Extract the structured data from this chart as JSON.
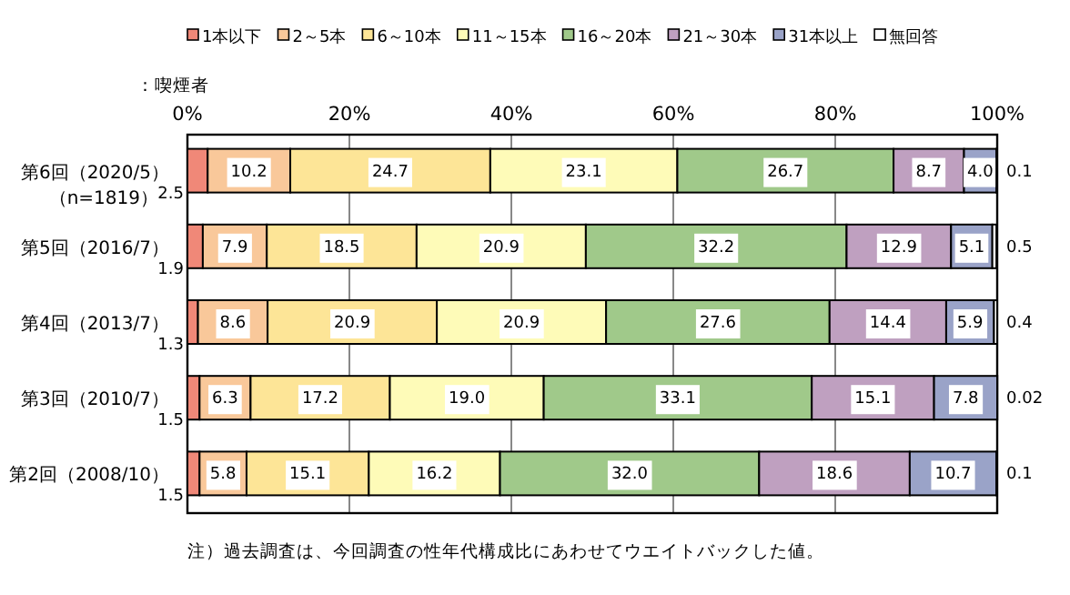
{
  "chart_data": {
    "type": "bar",
    "orientation": "horizontal",
    "stacked": true,
    "subtitle": "：喫煙者",
    "categories": [
      "第6回（2020/5）（n=1819）",
      "第5回（2016/7）",
      "第4回（2013/7）",
      "第3回（2010/7）",
      "第2回（2008/10）"
    ],
    "series": [
      {
        "name": "1本以下",
        "color": "#f08878",
        "values": [
          2.5,
          1.9,
          1.3,
          1.5,
          1.5
        ],
        "value_labels": [
          "2.5",
          "1.9",
          "1.3",
          "1.5",
          "1.5"
        ]
      },
      {
        "name": "2～5本",
        "color": "#f9c89a",
        "values": [
          10.2,
          7.9,
          8.6,
          6.3,
          5.8
        ],
        "value_labels": [
          "10.2",
          "7.9",
          "8.6",
          "6.3",
          "5.8"
        ]
      },
      {
        "name": "6～10本",
        "color": "#fde597",
        "values": [
          24.7,
          18.5,
          20.9,
          17.2,
          15.1
        ],
        "value_labels": [
          "24.7",
          "18.5",
          "20.9",
          "17.2",
          "15.1"
        ]
      },
      {
        "name": "11～15本",
        "color": "#fefbb8",
        "values": [
          23.1,
          20.9,
          20.9,
          19.0,
          16.2
        ],
        "value_labels": [
          "23.1",
          "20.9",
          "20.9",
          "19.0",
          "16.2"
        ]
      },
      {
        "name": "16～20本",
        "color": "#a0c98a",
        "values": [
          26.7,
          32.2,
          27.6,
          33.1,
          32.0
        ],
        "value_labels": [
          "26.7",
          "32.2",
          "27.6",
          "33.1",
          "32.0"
        ]
      },
      {
        "name": "21～30本",
        "color": "#bfa0c0",
        "values": [
          8.7,
          12.9,
          14.4,
          15.1,
          18.6
        ],
        "value_labels": [
          "8.7",
          "12.9",
          "14.4",
          "15.1",
          "18.6"
        ]
      },
      {
        "name": "31本以上",
        "color": "#9aa3c8",
        "values": [
          4.0,
          5.1,
          5.9,
          7.8,
          10.7
        ],
        "value_labels": [
          "4.0",
          "5.1",
          "5.9",
          "7.8",
          "10.7"
        ]
      },
      {
        "name": "無回答",
        "color": "#ffffff",
        "values": [
          0.1,
          0.5,
          0.4,
          0.02,
          0.1
        ],
        "value_labels": [
          "0.1",
          "0.5",
          "0.4",
          "0.02",
          "0.1"
        ]
      }
    ],
    "xlim": [
      0,
      100
    ],
    "xticks": [
      {
        "value": 0,
        "label": "0%"
      },
      {
        "value": 20,
        "label": "20%"
      },
      {
        "value": 40,
        "label": "40%"
      },
      {
        "value": 60,
        "label": "60%"
      },
      {
        "value": 80,
        "label": "80%"
      },
      {
        "value": 100,
        "label": "100%"
      }
    ],
    "grid": "x",
    "legend": "top",
    "annotations": [
      "注）過去調査は、今回調査の性年代構成比にあわせてウエイトバックした値。"
    ]
  }
}
